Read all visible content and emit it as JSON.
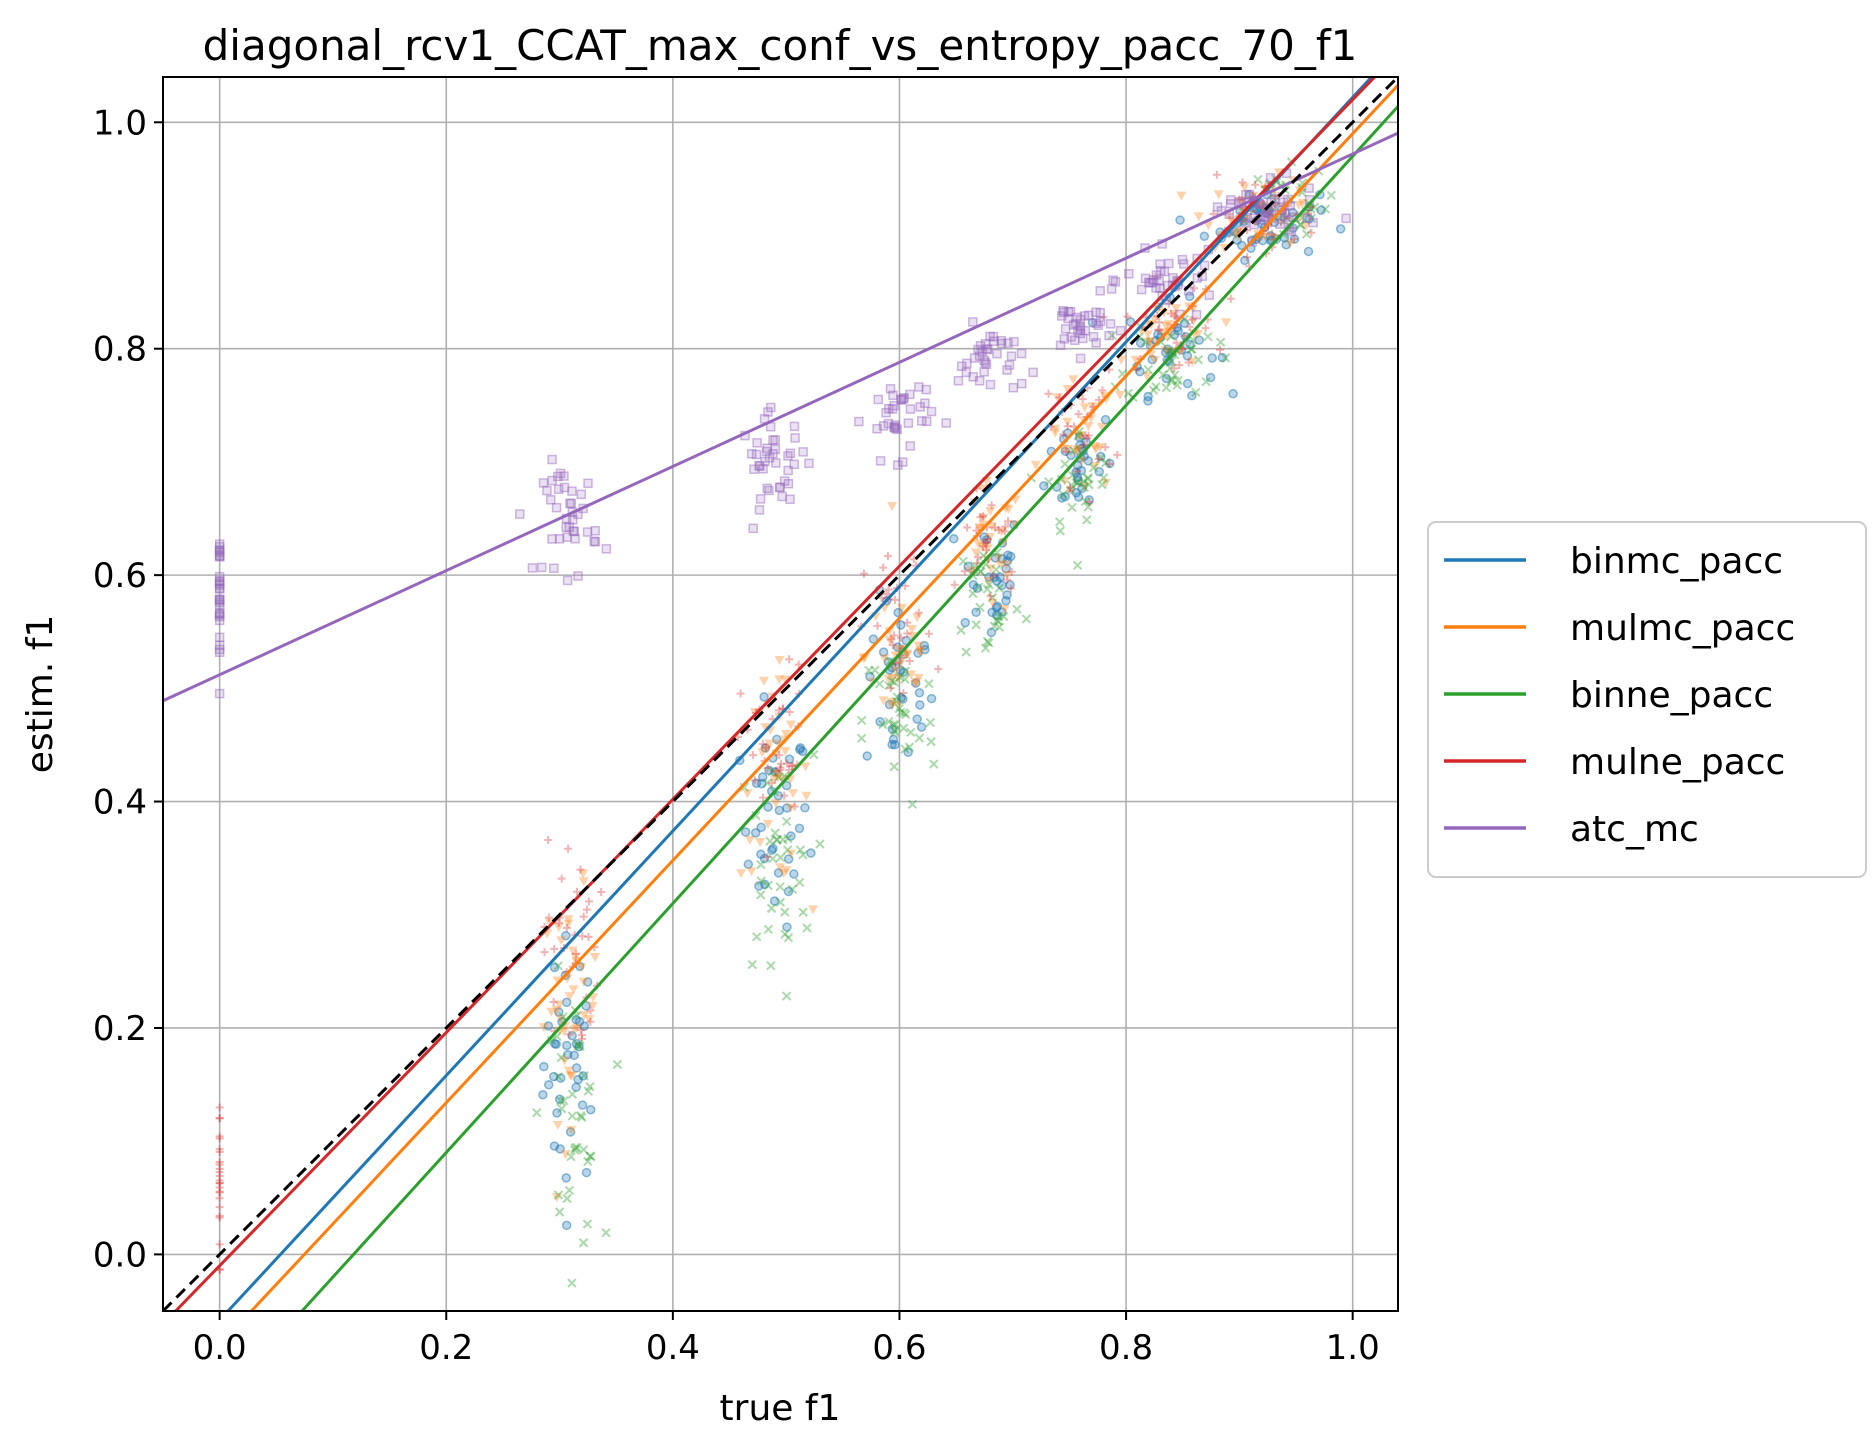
{
  "chart_data": {
    "type": "scatter",
    "title": "diagonal_rcv1_CCAT_max_conf_vs_entropy_pacc_70_f1",
    "xlabel": "true f1",
    "ylabel": "estim. f1",
    "xlim": [
      -0.05,
      1.04
    ],
    "ylim": [
      -0.05,
      1.04
    ],
    "xticks": [
      "0.0",
      "0.2",
      "0.4",
      "0.6",
      "0.8",
      "1.0"
    ],
    "yticks": [
      "0.0",
      "0.2",
      "0.4",
      "0.6",
      "0.8",
      "1.0"
    ],
    "grid": true,
    "legend_position": "right, outside plot",
    "diagonal": {
      "style": "dashed",
      "color": "#000000",
      "from": [
        -0.05,
        -0.05
      ],
      "to": [
        1.04,
        1.04
      ]
    },
    "series": [
      {
        "name": "binmc_pacc",
        "color": "#1f77b4",
        "marker": "circle",
        "fit": {
          "slope": 1.08,
          "intercept": -0.058
        },
        "clusters": [
          {
            "x": 0.31,
            "y": 0.17,
            "sx": 0.012,
            "sy": 0.055,
            "n": 40
          },
          {
            "x": 0.49,
            "y": 0.38,
            "sx": 0.015,
            "sy": 0.045,
            "n": 40
          },
          {
            "x": 0.6,
            "y": 0.5,
            "sx": 0.015,
            "sy": 0.04,
            "n": 35
          },
          {
            "x": 0.68,
            "y": 0.6,
            "sx": 0.014,
            "sy": 0.03,
            "n": 30
          },
          {
            "x": 0.76,
            "y": 0.7,
            "sx": 0.015,
            "sy": 0.025,
            "n": 30
          },
          {
            "x": 0.84,
            "y": 0.8,
            "sx": 0.02,
            "sy": 0.02,
            "n": 35
          },
          {
            "x": 0.92,
            "y": 0.91,
            "sx": 0.025,
            "sy": 0.015,
            "n": 45
          }
        ]
      },
      {
        "name": "mulmc_pacc",
        "color": "#ff7f0e",
        "marker": "triangle",
        "fit": {
          "slope": 1.07,
          "intercept": -0.08
        },
        "clusters": [
          {
            "x": 0.31,
            "y": 0.22,
            "sx": 0.012,
            "sy": 0.05,
            "n": 40
          },
          {
            "x": 0.49,
            "y": 0.42,
            "sx": 0.015,
            "sy": 0.045,
            "n": 40
          },
          {
            "x": 0.6,
            "y": 0.53,
            "sx": 0.015,
            "sy": 0.04,
            "n": 35
          },
          {
            "x": 0.68,
            "y": 0.62,
            "sx": 0.014,
            "sy": 0.03,
            "n": 30
          },
          {
            "x": 0.76,
            "y": 0.72,
            "sx": 0.015,
            "sy": 0.025,
            "n": 30
          },
          {
            "x": 0.84,
            "y": 0.81,
            "sx": 0.02,
            "sy": 0.02,
            "n": 35
          },
          {
            "x": 0.92,
            "y": 0.92,
            "sx": 0.025,
            "sy": 0.015,
            "n": 45
          }
        ]
      },
      {
        "name": "binne_pacc",
        "color": "#2ca02c",
        "marker": "x",
        "fit": {
          "slope": 1.1,
          "intercept": -0.13
        },
        "clusters": [
          {
            "x": 0.31,
            "y": 0.12,
            "sx": 0.013,
            "sy": 0.06,
            "n": 40
          },
          {
            "x": 0.49,
            "y": 0.34,
            "sx": 0.017,
            "sy": 0.05,
            "n": 40
          },
          {
            "x": 0.6,
            "y": 0.47,
            "sx": 0.016,
            "sy": 0.04,
            "n": 35
          },
          {
            "x": 0.68,
            "y": 0.58,
            "sx": 0.015,
            "sy": 0.03,
            "n": 30
          },
          {
            "x": 0.76,
            "y": 0.68,
            "sx": 0.015,
            "sy": 0.025,
            "n": 30
          },
          {
            "x": 0.84,
            "y": 0.79,
            "sx": 0.02,
            "sy": 0.02,
            "n": 35
          },
          {
            "x": 0.93,
            "y": 0.93,
            "sx": 0.025,
            "sy": 0.015,
            "n": 45
          }
        ]
      },
      {
        "name": "mulne_pacc",
        "color": "#d62728",
        "marker": "plus",
        "fit": {
          "slope": 1.03,
          "intercept": -0.01
        },
        "clusters": [
          {
            "x": 0.0,
            "y": 0.06,
            "sx": 0.0,
            "sy": 0.04,
            "n": 25
          },
          {
            "x": 0.31,
            "y": 0.27,
            "sx": 0.012,
            "sy": 0.05,
            "n": 35
          },
          {
            "x": 0.49,
            "y": 0.44,
            "sx": 0.015,
            "sy": 0.04,
            "n": 35
          },
          {
            "x": 0.6,
            "y": 0.55,
            "sx": 0.015,
            "sy": 0.035,
            "n": 30
          },
          {
            "x": 0.68,
            "y": 0.63,
            "sx": 0.014,
            "sy": 0.03,
            "n": 30
          },
          {
            "x": 0.76,
            "y": 0.73,
            "sx": 0.015,
            "sy": 0.025,
            "n": 30
          },
          {
            "x": 0.84,
            "y": 0.82,
            "sx": 0.02,
            "sy": 0.02,
            "n": 35
          },
          {
            "x": 0.92,
            "y": 0.92,
            "sx": 0.025,
            "sy": 0.015,
            "n": 45
          }
        ]
      },
      {
        "name": "atc_mc",
        "color": "#9467bd",
        "marker": "square",
        "fit": {
          "slope": 0.46,
          "intercept": 0.512
        },
        "clusters": [
          {
            "x": 0.0,
            "y": 0.58,
            "sx": 0.0,
            "sy": 0.03,
            "n": 30
          },
          {
            "x": 0.31,
            "y": 0.65,
            "sx": 0.012,
            "sy": 0.025,
            "n": 40
          },
          {
            "x": 0.49,
            "y": 0.7,
            "sx": 0.015,
            "sy": 0.02,
            "n": 40
          },
          {
            "x": 0.6,
            "y": 0.74,
            "sx": 0.015,
            "sy": 0.018,
            "n": 35
          },
          {
            "x": 0.68,
            "y": 0.79,
            "sx": 0.014,
            "sy": 0.015,
            "n": 35
          },
          {
            "x": 0.76,
            "y": 0.82,
            "sx": 0.015,
            "sy": 0.012,
            "n": 35
          },
          {
            "x": 0.84,
            "y": 0.86,
            "sx": 0.02,
            "sy": 0.012,
            "n": 40
          },
          {
            "x": 0.92,
            "y": 0.92,
            "sx": 0.025,
            "sy": 0.012,
            "n": 50
          }
        ]
      }
    ]
  }
}
